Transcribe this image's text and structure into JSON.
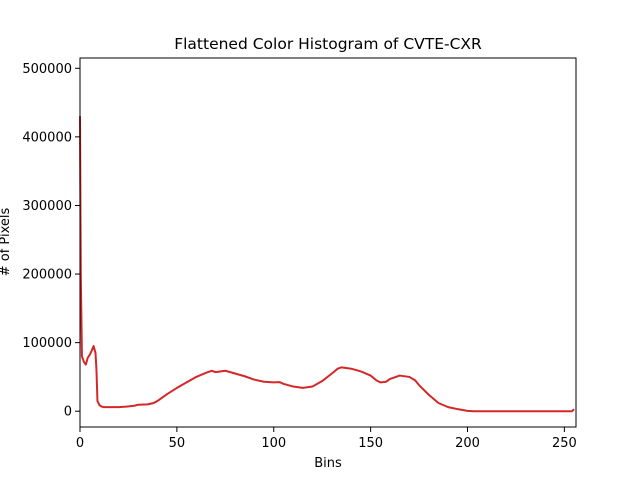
{
  "chart_data": {
    "type": "line",
    "title": "Flattened Color Histogram of CVTE-CXR",
    "xlabel": "Bins",
    "ylabel": "# of Pixels",
    "xlim": [
      0,
      256
    ],
    "ylim": [
      -23000,
      515000
    ],
    "x_ticks": [
      0,
      50,
      100,
      150,
      200,
      250
    ],
    "y_ticks": [
      0,
      100000,
      200000,
      300000,
      400000,
      500000
    ],
    "grid": false,
    "legend": "none",
    "series": [
      {
        "color": "#d62728",
        "x": [
          0,
          0.4,
          1,
          2,
          3,
          4,
          5,
          6,
          7,
          8,
          8.5,
          9,
          10,
          11,
          12,
          15,
          20,
          25,
          28,
          30,
          35,
          38,
          40,
          45,
          50,
          55,
          60,
          65,
          68,
          70,
          75,
          80,
          85,
          90,
          95,
          100,
          103,
          105,
          110,
          115,
          120,
          125,
          130,
          133,
          135,
          140,
          145,
          150,
          153,
          155,
          158,
          160,
          163,
          165,
          170,
          173,
          175,
          180,
          185,
          190,
          195,
          200,
          203,
          205,
          210,
          220,
          230,
          240,
          250,
          254,
          255
        ],
        "y": [
          430000,
          200000,
          80000,
          72000,
          68000,
          78000,
          82000,
          88000,
          95000,
          85000,
          60000,
          15000,
          9000,
          7000,
          6000,
          6000,
          6000,
          7000,
          8000,
          9500,
          10000,
          12000,
          15000,
          25000,
          34000,
          42000,
          50000,
          56000,
          59000,
          57000,
          59000,
          55000,
          51000,
          46000,
          43000,
          42000,
          42500,
          40000,
          36000,
          34000,
          36000,
          44000,
          55000,
          62000,
          64000,
          62000,
          58000,
          52000,
          45000,
          42000,
          43000,
          47000,
          50000,
          52000,
          50000,
          45000,
          38000,
          24000,
          12000,
          6000,
          3000,
          500,
          0,
          0,
          0,
          0,
          0,
          0,
          0,
          0,
          3000
        ]
      }
    ]
  }
}
